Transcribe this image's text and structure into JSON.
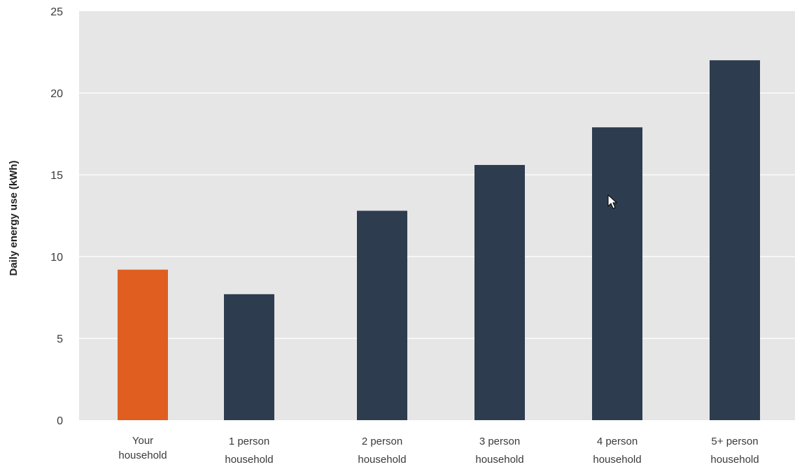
{
  "chart_data": {
    "type": "bar",
    "title": "",
    "xlabel": "",
    "ylabel": "Daily energy use (kWh)",
    "categories": [
      [
        "Your",
        "household"
      ],
      [
        "1 person",
        "household"
      ],
      [
        "2 person",
        "household"
      ],
      [
        "3 person",
        "household"
      ],
      [
        "4 person",
        "household"
      ],
      [
        "5+ person",
        "household"
      ]
    ],
    "values": [
      9.2,
      7.7,
      12.8,
      15.6,
      17.9,
      22.0
    ],
    "highlight_index": 0,
    "ylim": [
      0,
      25
    ],
    "yticks": [
      0,
      5,
      10,
      15,
      20,
      25
    ],
    "grid": true,
    "legend": "none",
    "colors": {
      "highlight": "#E05F20",
      "bar": "#2E3C4F",
      "plot_background": "#E6E6E6",
      "grid": "#FFFFFF"
    }
  },
  "cursor_icon": "mouse-pointer-icon"
}
